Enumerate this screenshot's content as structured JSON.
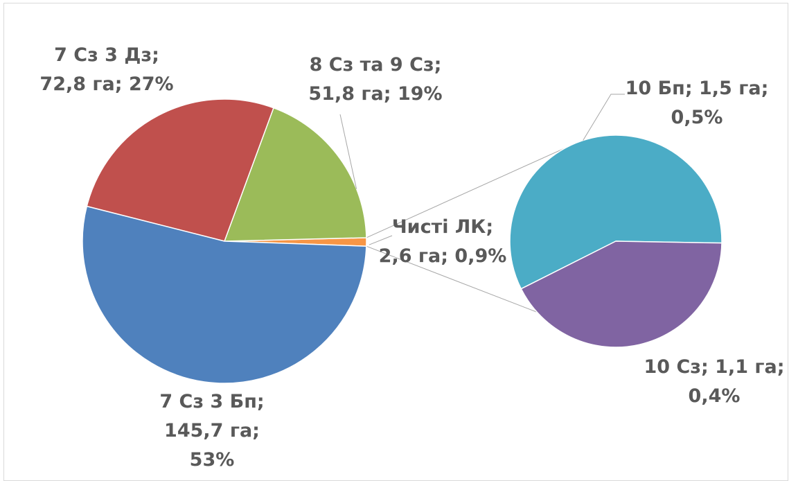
{
  "chart_data": {
    "type": "pie",
    "subtype": "pie-of-pie",
    "title": "",
    "unit": "га",
    "main_pie": {
      "slices": [
        {
          "name": "7 Сз 3 Бп",
          "value": 145.7,
          "percent": "53%",
          "color": "#4f81bd",
          "label_lines": [
            "7 Сз 3 Бп;",
            "145,7 га;",
            "53%"
          ]
        },
        {
          "name": "7 Сз 3 Дз",
          "value": 72.8,
          "percent": "27%",
          "color": "#c0504d",
          "label_lines": [
            "7 Сз 3 Дз;",
            "72,8 га; 27%"
          ]
        },
        {
          "name": "8 Сз та 9 Сз",
          "value": 51.8,
          "percent": "19%",
          "color": "#9bbb59",
          "label_lines": [
            "8 Сз та 9 Сз;",
            "51,8 га; 19%"
          ]
        },
        {
          "name": "Чисті ЛК",
          "value": 2.6,
          "percent": "0,9%",
          "color": "#f79646",
          "label_lines": [
            "Чисті ЛК;",
            "2,6 га; 0,9%"
          ]
        }
      ]
    },
    "secondary_pie": {
      "slices": [
        {
          "name": "10 Бп",
          "value": 1.5,
          "percent": "0,5%",
          "color": "#4bacc6",
          "label_lines": [
            "10 Бп; 1,5 га;",
            "0,5%"
          ]
        },
        {
          "name": "10 Сз",
          "value": 1.1,
          "percent": "0,4%",
          "color": "#8064a2",
          "label_lines": [
            "10 Сз; 1,1 га;",
            "0,4%"
          ]
        }
      ]
    },
    "legend": "none"
  }
}
